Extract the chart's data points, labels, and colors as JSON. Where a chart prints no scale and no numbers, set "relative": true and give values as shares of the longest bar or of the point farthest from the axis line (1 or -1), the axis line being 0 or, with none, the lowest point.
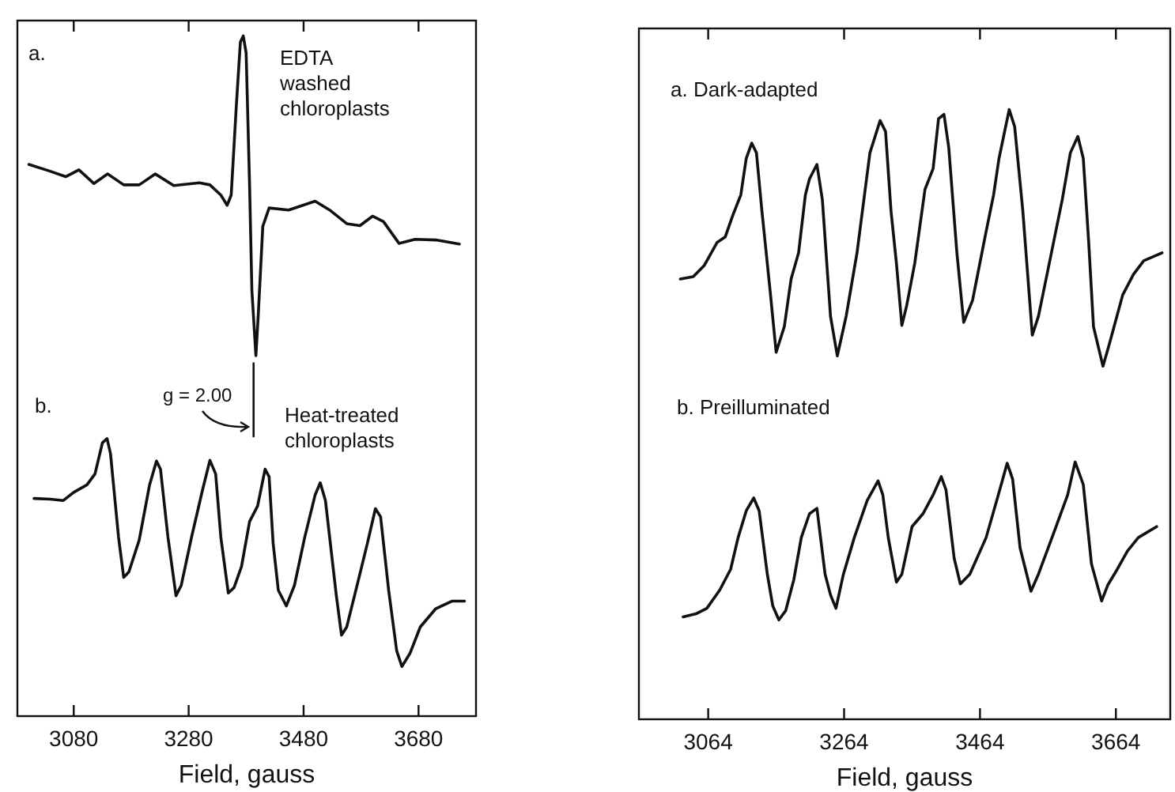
{
  "chart_data": [
    {
      "type": "line",
      "relative": true,
      "xlabel": "Field, gauss",
      "xlim": [
        2982,
        3780
      ],
      "xticks": [
        3080,
        3280,
        3480,
        3680
      ],
      "x": [
        3002,
        3039,
        3066,
        3089,
        3115,
        3139,
        3167,
        3194,
        3222,
        3254,
        3299,
        3317,
        3336,
        3347,
        3354,
        3363,
        3370,
        3375,
        3380,
        3386,
        3390,
        3397,
        3401,
        3409,
        3420,
        3454,
        3500,
        3527,
        3555,
        3578,
        3600,
        3619,
        3646,
        3674,
        3710,
        3751
      ],
      "series": [
        {
          "color": "#111111",
          "values": [
            0.811,
            0.801,
            0.793,
            0.803,
            0.783,
            0.797,
            0.781,
            0.781,
            0.797,
            0.78,
            0.784,
            0.781,
            0.766,
            0.751,
            0.766,
            0.898,
            0.991,
            1,
            0.975,
            0.781,
            0.626,
            0.53,
            0.588,
            0.72,
            0.747,
            0.744,
            0.757,
            0.743,
            0.724,
            0.721,
            0.735,
            0.727,
            0.695,
            0.701,
            0.7,
            0.694
          ]
        },
        {
          "color": "#111111",
          "x": [
            3011,
            3039,
            3062,
            3080,
            3103,
            3117,
            3130,
            3138,
            3144,
            3158,
            3167,
            3176,
            3194,
            3212,
            3224,
            3231,
            3244,
            3258,
            3267,
            3285,
            3304,
            3317,
            3327,
            3336,
            3349,
            3359,
            3372,
            3386,
            3400,
            3413,
            3420,
            3427,
            3436,
            3450,
            3464,
            3482,
            3500,
            3509,
            3518,
            3537,
            3546,
            3555,
            3573,
            3591,
            3605,
            3614,
            3628,
            3642,
            3651,
            3665,
            3683,
            3710,
            3738,
            3760
          ],
          "values": [
            0.32,
            0.319,
            0.317,
            0.329,
            0.34,
            0.356,
            0.402,
            0.408,
            0.386,
            0.263,
            0.204,
            0.212,
            0.259,
            0.34,
            0.375,
            0.363,
            0.263,
            0.177,
            0.192,
            0.263,
            0.332,
            0.376,
            0.356,
            0.263,
            0.181,
            0.189,
            0.22,
            0.286,
            0.309,
            0.363,
            0.352,
            0.254,
            0.185,
            0.162,
            0.192,
            0.263,
            0.325,
            0.343,
            0.317,
            0.177,
            0.119,
            0.131,
            0.192,
            0.254,
            0.305,
            0.293,
            0.185,
            0.096,
            0.073,
            0.092,
            0.131,
            0.158,
            0.169,
            0.169
          ]
        }
      ],
      "annotations": [
        "a.",
        "EDTA washed chloroplasts",
        "b.",
        "Heat-treated chloroplasts",
        "g = 2.00"
      ],
      "ref_lines": [
        {
          "axis": "x",
          "value": 3393
        }
      ]
    },
    {
      "type": "line",
      "relative": true,
      "xlabel": "Field, gauss",
      "xlim": [
        2962,
        3744
      ],
      "xticks": [
        3064,
        3264,
        3464,
        3664
      ],
      "x": [
        3023,
        3042,
        3058,
        3077,
        3089,
        3100,
        3112,
        3120,
        3128,
        3135,
        3143,
        3155,
        3164,
        3176,
        3186,
        3197,
        3207,
        3213,
        3224,
        3232,
        3244,
        3254,
        3267,
        3283,
        3302,
        3317,
        3325,
        3333,
        3341,
        3349,
        3356,
        3368,
        3383,
        3395,
        3403,
        3411,
        3418,
        3430,
        3440,
        3453,
        3473,
        3484,
        3492,
        3507,
        3515,
        3527,
        3541,
        3550,
        3566,
        3585,
        3597,
        3608,
        3616,
        3624,
        3631,
        3645,
        3655,
        3674,
        3690,
        3705,
        3732
      ],
      "series": [
        {
          "color": "#111111",
          "values": [
            0.722,
            0.726,
            0.744,
            0.782,
            0.791,
            0.826,
            0.86,
            0.92,
            0.945,
            0.929,
            0.834,
            0.704,
            0.602,
            0.644,
            0.722,
            0.765,
            0.86,
            0.886,
            0.91,
            0.852,
            0.661,
            0.596,
            0.661,
            0.765,
            0.929,
            0.982,
            0.964,
            0.834,
            0.748,
            0.646,
            0.678,
            0.748,
            0.869,
            0.903,
            0.985,
            0.992,
            0.938,
            0.765,
            0.651,
            0.687,
            0.8,
            0.86,
            0.92,
            1,
            0.972,
            0.834,
            0.63,
            0.661,
            0.748,
            0.852,
            0.929,
            0.956,
            0.92,
            0.782,
            0.644,
            0.579,
            0.618,
            0.696,
            0.73,
            0.752,
            0.765
          ]
        },
        {
          "color": "#111111",
          "x": [
            3027,
            3046,
            3062,
            3081,
            3097,
            3108,
            3120,
            3131,
            3139,
            3151,
            3159,
            3168,
            3178,
            3190,
            3201,
            3213,
            3224,
            3236,
            3244,
            3252,
            3263,
            3279,
            3298,
            3314,
            3321,
            3329,
            3341,
            3349,
            3364,
            3380,
            3395,
            3407,
            3414,
            3426,
            3435,
            3449,
            3473,
            3492,
            3504,
            3512,
            3523,
            3539,
            3550,
            3573,
            3593,
            3604,
            3616,
            3628,
            3643,
            3652,
            3666,
            3681,
            3697,
            3724
          ],
          "values": [
            0.168,
            0.173,
            0.182,
            0.212,
            0.246,
            0.298,
            0.342,
            0.363,
            0.342,
            0.238,
            0.186,
            0.163,
            0.178,
            0.229,
            0.298,
            0.337,
            0.346,
            0.238,
            0.204,
            0.182,
            0.238,
            0.298,
            0.359,
            0.391,
            0.368,
            0.298,
            0.225,
            0.238,
            0.316,
            0.337,
            0.368,
            0.398,
            0.376,
            0.264,
            0.222,
            0.238,
            0.298,
            0.372,
            0.42,
            0.394,
            0.281,
            0.21,
            0.238,
            0.307,
            0.368,
            0.422,
            0.385,
            0.255,
            0.194,
            0.22,
            0.246,
            0.276,
            0.298,
            0.316
          ]
        }
      ],
      "annotations": [
        "a. Dark-adapted",
        "b. Preilluminated"
      ]
    }
  ]
}
